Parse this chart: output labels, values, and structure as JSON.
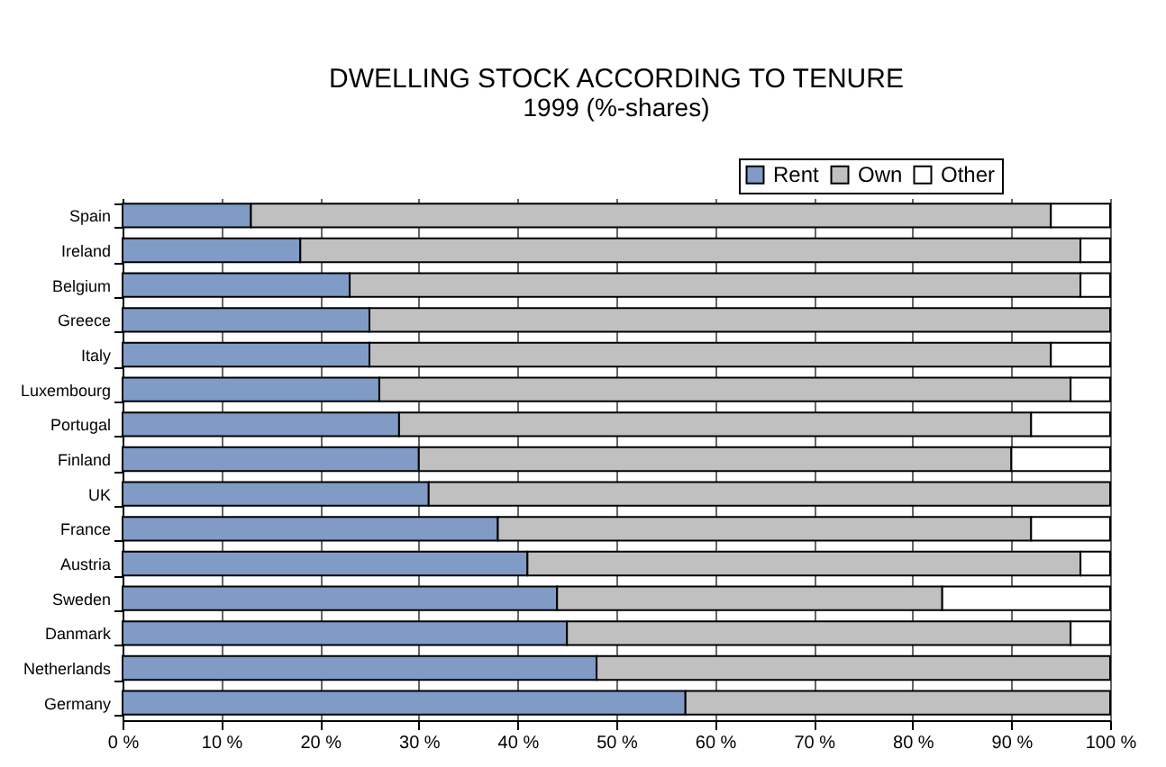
{
  "chart_data": {
    "type": "bar",
    "orientation": "horizontal",
    "stacked": true,
    "title": "DWELLING STOCK ACCORDING TO TENURE",
    "subtitle": "1999 (%-shares)",
    "categories": [
      "Spain",
      "Ireland",
      "Belgium",
      "Greece",
      "Italy",
      "Luxembourg",
      "Portugal",
      "Finland",
      "UK",
      "France",
      "Austria",
      "Sweden",
      "Danmark",
      "Netherlands",
      "Germany"
    ],
    "series": [
      {
        "name": "Rent",
        "color": "#7f9bc6",
        "values": [
          13,
          18,
          23,
          25,
          25,
          26,
          28,
          30,
          31,
          38,
          41,
          44,
          45,
          48,
          57
        ]
      },
      {
        "name": "Own",
        "color": "#c0c0c0",
        "values": [
          81,
          79,
          74,
          75,
          69,
          70,
          64,
          60,
          69,
          54,
          56,
          39,
          51,
          52,
          43
        ]
      },
      {
        "name": "Other",
        "color": "#ffffff",
        "values": [
          6,
          3,
          3,
          0,
          6,
          4,
          8,
          10,
          0,
          8,
          3,
          17,
          4,
          0,
          0
        ]
      }
    ],
    "xlim": [
      0,
      100
    ],
    "xticks": [
      {
        "value": 0,
        "label": "0 %"
      },
      {
        "value": 10,
        "label": "10 %"
      },
      {
        "value": 20,
        "label": "20 %"
      },
      {
        "value": 30,
        "label": "30 %"
      },
      {
        "value": 40,
        "label": "40 %"
      },
      {
        "value": 50,
        "label": "50 %"
      },
      {
        "value": 60,
        "label": "60 %"
      },
      {
        "value": 70,
        "label": "70 %"
      },
      {
        "value": 80,
        "label": "80 %"
      },
      {
        "value": 90,
        "label": "90 %"
      },
      {
        "value": 100,
        "label": "100 %"
      }
    ],
    "grid": "x",
    "legend": "top right"
  }
}
